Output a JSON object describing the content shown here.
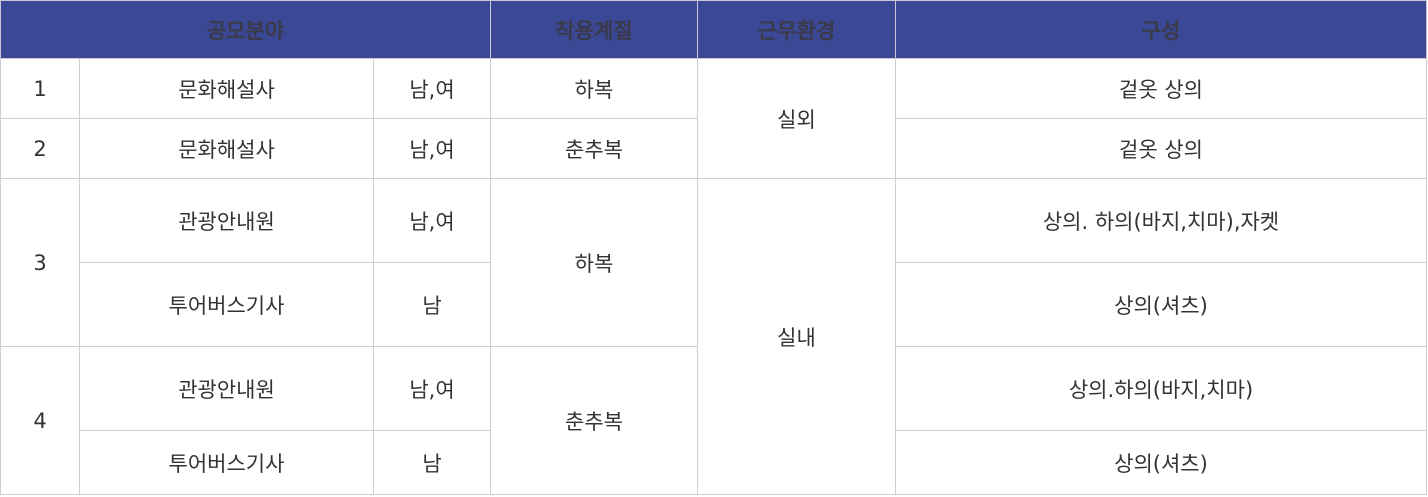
{
  "header": {
    "field": "공모분야",
    "season": "착용계절",
    "environment": "근무환경",
    "composition": "구성"
  },
  "rows": [
    {
      "no": "1",
      "job": "문화해설사",
      "gender": "남,여",
      "season": "하복",
      "environment": "실외",
      "composition": "겉옷 상의"
    },
    {
      "no": "2",
      "job": "문화해설사",
      "gender": "남,여",
      "season": "춘추복",
      "composition": "겉옷 상의"
    },
    {
      "no": "3",
      "job": "관광안내원",
      "gender": "남,여",
      "season": "하복",
      "environment": "실내",
      "composition": "상의. 하의(바지,치마),자켓"
    },
    {
      "job": "투어버스기사",
      "gender": "남",
      "composition": "상의(셔츠)"
    },
    {
      "no": "4",
      "job": "관광안내원",
      "gender": "남,여",
      "season": "춘추복",
      "composition": "상의.하의(바지,치마)"
    },
    {
      "job": "투어버스기사",
      "gender": "남",
      "composition": "상의(셔츠)"
    }
  ],
  "colors": {
    "header_bg": "#3b4895",
    "border": "#cfcfcf"
  }
}
